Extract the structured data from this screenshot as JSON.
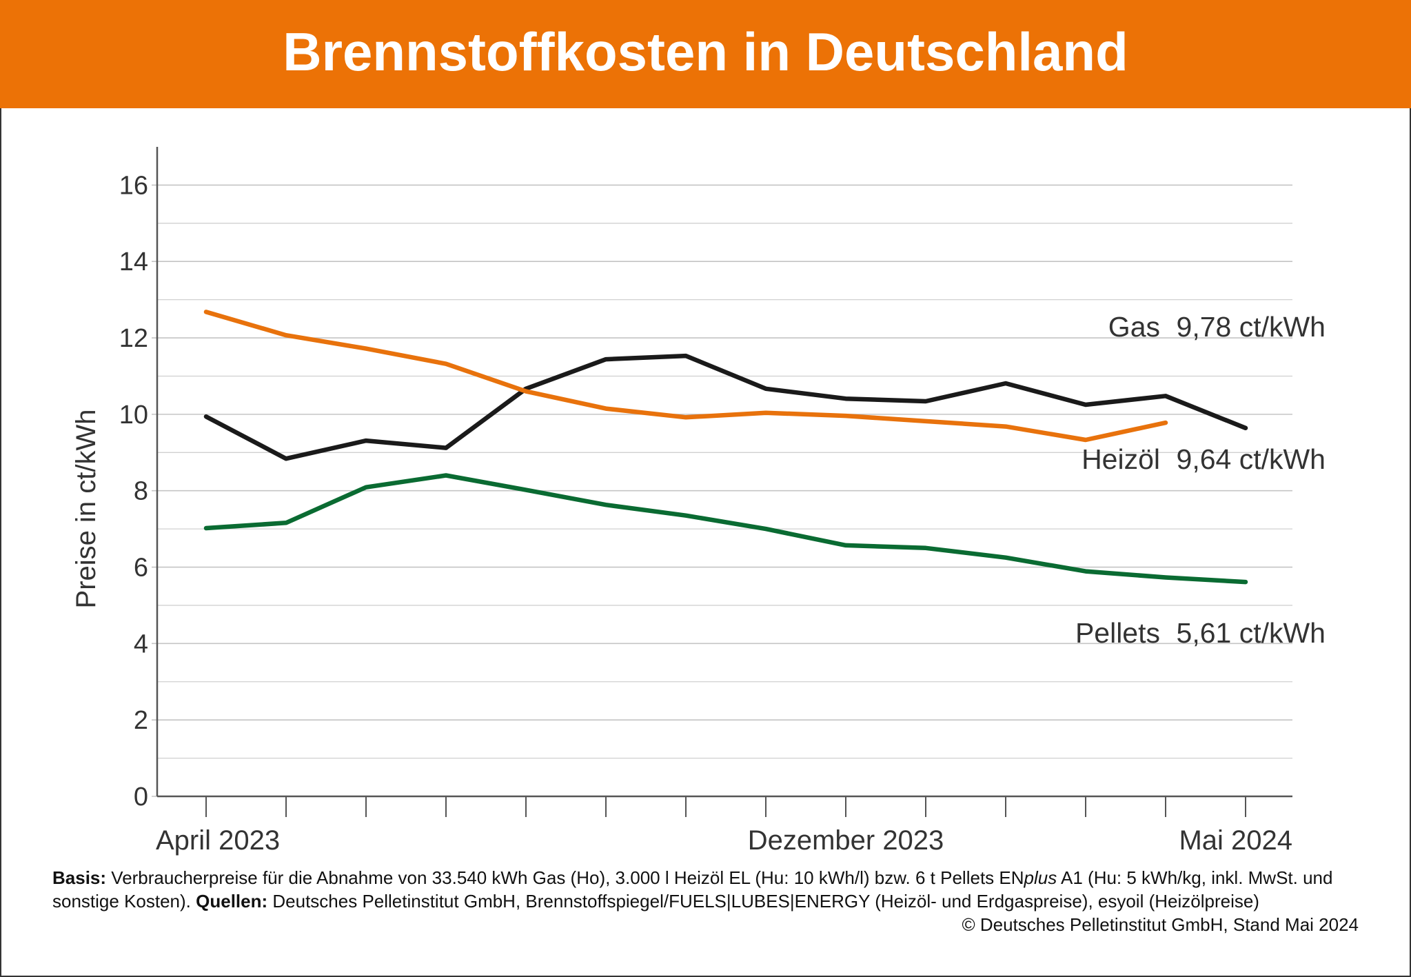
{
  "chart_data": {
    "type": "line",
    "title": "Brennstoffkosten in Deutschland",
    "y_label": "Preise in ct/kWh",
    "categories": [
      "April 2023",
      null,
      null,
      null,
      null,
      null,
      null,
      null,
      "Dezember 2023",
      null,
      null,
      null,
      null,
      "Mai 2024"
    ],
    "series": [
      {
        "name": "Heizöl",
        "color": "#1a1a1a",
        "end_label": "9,64 ct/kWh",
        "values": [
          9.94,
          8.84,
          9.31,
          9.12,
          10.67,
          11.44,
          11.53,
          10.67,
          10.41,
          10.34,
          10.81,
          10.25,
          10.48,
          9.64
        ]
      },
      {
        "name": "Gas",
        "color": "#e8720c",
        "end_label": "9,78 ct/kWh",
        "values": [
          12.68,
          12.07,
          11.72,
          11.32,
          10.6,
          10.15,
          9.92,
          10.04,
          9.96,
          9.82,
          9.68,
          9.33,
          9.78,
          null
        ]
      },
      {
        "name": "Pellets",
        "color": "#0a6b32",
        "end_label": "5,61 ct/kWh",
        "values": [
          7.02,
          7.16,
          8.09,
          8.4,
          8.02,
          7.63,
          7.35,
          7.0,
          6.57,
          6.5,
          6.25,
          5.89,
          5.73,
          5.61
        ]
      }
    ],
    "ylim": [
      0,
      17
    ],
    "yticks": [
      0,
      2,
      4,
      6,
      8,
      10,
      12,
      14,
      16
    ],
    "minor_yticks": [
      1,
      3,
      5,
      7,
      9,
      11,
      13,
      15
    ],
    "grid": true
  },
  "footer": {
    "basis_label": "Basis:",
    "basis_text_1": "Verbraucherpreise für die Abnahme von 33.540 kWh Gas (Ho), 3.000 l Heizöl EL (Hu: 10 kWh/l) bzw. 6 t Pellets EN",
    "basis_italic": "plus",
    "basis_text_2": " A1 (Hu: 5 kWh/kg, inkl. MwSt. und sonstige Kosten).",
    "sources_label": "Quellen:",
    "sources_text": "Deutsches Pelletinstitut GmbH, Brennstoffspiegel/FUELS|LUBES|ENERGY (Heizöl- und Erdgaspreise), esyoil (Heizölpreise)",
    "copyright": "© Deutsches Pelletinstitut GmbH, Stand Mai 2024"
  }
}
